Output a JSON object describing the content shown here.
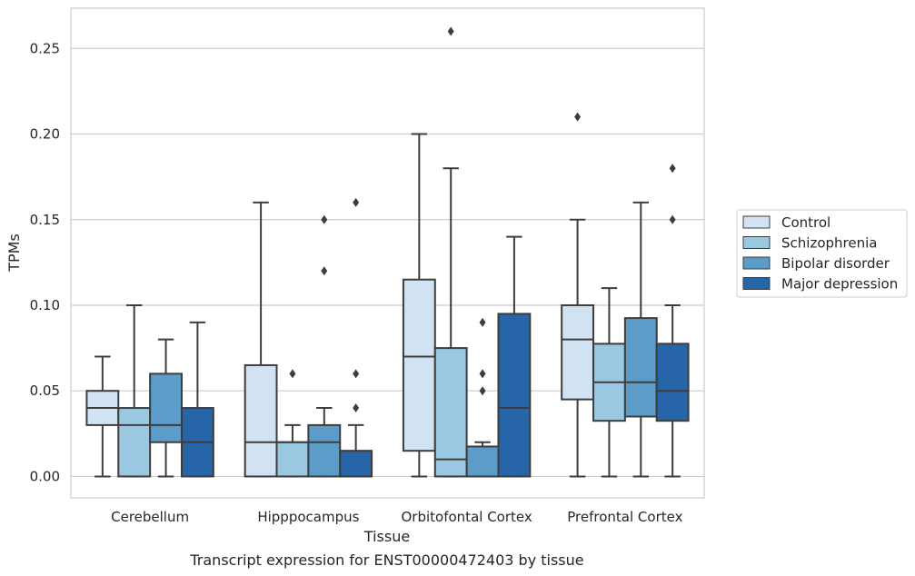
{
  "chart_data": {
    "type": "box",
    "xlabel": "Tissue",
    "ylabel": "TPMs",
    "caption": "Transcript expression for ENST00000472403 by tissue",
    "ylim": [
      -0.0125,
      0.2735
    ],
    "yticks": [
      0.0,
      0.05,
      0.1,
      0.15,
      0.2,
      0.25
    ],
    "ytick_labels": [
      "0.00",
      "0.05",
      "0.10",
      "0.15",
      "0.20",
      "0.25"
    ],
    "grid": "horizontal",
    "legend_position": "right",
    "categories": [
      "Cerebellum",
      "Hipppocampus",
      "Orbitofontal Cortex",
      "Prefrontal Cortex"
    ],
    "series": [
      {
        "name": "Control",
        "color": "#d1e2f2",
        "boxes": [
          {
            "whisker_low": 0.0,
            "q1": 0.03,
            "median": 0.04,
            "q3": 0.05,
            "whisker_high": 0.07,
            "outliers": []
          },
          {
            "whisker_low": 0.0,
            "q1": 0.0,
            "median": 0.02,
            "q3": 0.065,
            "whisker_high": 0.16,
            "outliers": []
          },
          {
            "whisker_low": 0.0,
            "q1": 0.015,
            "median": 0.07,
            "q3": 0.115,
            "whisker_high": 0.2,
            "outliers": []
          },
          {
            "whisker_low": 0.0,
            "q1": 0.045,
            "median": 0.08,
            "q3": 0.1,
            "whisker_high": 0.15,
            "outliers": [
              0.21
            ]
          }
        ]
      },
      {
        "name": "Schizophrenia",
        "color": "#9ac8e0",
        "boxes": [
          {
            "whisker_low": 0.0,
            "q1": 0.0,
            "median": 0.03,
            "q3": 0.04,
            "whisker_high": 0.1,
            "outliers": []
          },
          {
            "whisker_low": 0.0,
            "q1": 0.0,
            "median": 0.02,
            "q3": 0.02,
            "whisker_high": 0.03,
            "outliers": [
              0.06
            ]
          },
          {
            "whisker_low": 0.0,
            "q1": 0.0,
            "median": 0.01,
            "q3": 0.075,
            "whisker_high": 0.18,
            "outliers": [
              0.26
            ]
          },
          {
            "whisker_low": 0.0,
            "q1": 0.0325,
            "median": 0.055,
            "q3": 0.0775,
            "whisker_high": 0.11,
            "outliers": []
          }
        ]
      },
      {
        "name": "Bipolar disorder",
        "color": "#5b9dc8",
        "boxes": [
          {
            "whisker_low": 0.0,
            "q1": 0.02,
            "median": 0.03,
            "q3": 0.06,
            "whisker_high": 0.08,
            "outliers": []
          },
          {
            "whisker_low": 0.0,
            "q1": 0.0,
            "median": 0.02,
            "q3": 0.03,
            "whisker_high": 0.04,
            "outliers": [
              0.12,
              0.15
            ]
          },
          {
            "whisker_low": 0.0,
            "q1": 0.0,
            "median": 0.0,
            "q3": 0.0175,
            "whisker_high": 0.02,
            "outliers": [
              0.05,
              0.06,
              0.09
            ]
          },
          {
            "whisker_low": 0.0,
            "q1": 0.035,
            "median": 0.055,
            "q3": 0.0925,
            "whisker_high": 0.16,
            "outliers": []
          }
        ]
      },
      {
        "name": "Major depression",
        "color": "#2565a8",
        "boxes": [
          {
            "whisker_low": 0.0,
            "q1": 0.0,
            "median": 0.02,
            "q3": 0.04,
            "whisker_high": 0.09,
            "outliers": []
          },
          {
            "whisker_low": 0.0,
            "q1": 0.0,
            "median": 0.0,
            "q3": 0.015,
            "whisker_high": 0.03,
            "outliers": [
              0.04,
              0.06,
              0.16
            ]
          },
          {
            "whisker_low": 0.0,
            "q1": 0.0,
            "median": 0.04,
            "q3": 0.095,
            "whisker_high": 0.14,
            "outliers": []
          },
          {
            "whisker_low": 0.0,
            "q1": 0.0325,
            "median": 0.05,
            "q3": 0.0775,
            "whisker_high": 0.1,
            "outliers": [
              0.15,
              0.18
            ]
          }
        ]
      }
    ]
  },
  "colors": {
    "grid": "#cccccc",
    "frame": "#cccccc",
    "box_edge": "#3d3d3d",
    "text": "#262626"
  }
}
